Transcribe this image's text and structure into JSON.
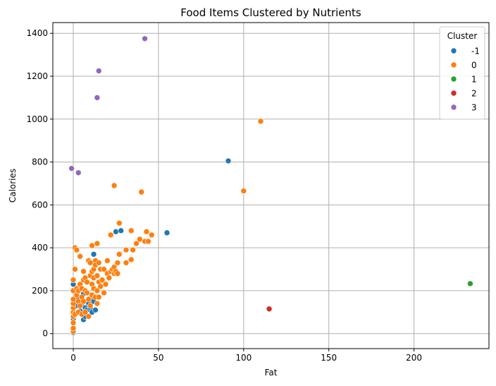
{
  "chart_data": {
    "type": "scatter",
    "title": "Food Items Clustered by Nutrients",
    "xlabel": "Fat",
    "ylabel": "Calories",
    "xlim": [
      -12,
      244
    ],
    "ylim": [
      -70,
      1450
    ],
    "xticks": [
      0,
      50,
      100,
      150,
      200
    ],
    "yticks": [
      0,
      200,
      400,
      600,
      800,
      1000,
      1200,
      1400
    ],
    "grid": true,
    "legend": {
      "title": "Cluster",
      "placement": "top-right"
    },
    "series": [
      {
        "name": "-1",
        "color": "#1f77b4",
        "points": [
          [
            0,
            5
          ],
          [
            0,
            70
          ],
          [
            0,
            230
          ],
          [
            2,
            130
          ],
          [
            3,
            160
          ],
          [
            4,
            105
          ],
          [
            5,
            140
          ],
          [
            6,
            65
          ],
          [
            6,
            185
          ],
          [
            7,
            120
          ],
          [
            7,
            80
          ],
          [
            8,
            110
          ],
          [
            9,
            140
          ],
          [
            10,
            120
          ],
          [
            11,
            100
          ],
          [
            11,
            160
          ],
          [
            12,
            370
          ],
          [
            12,
            150
          ],
          [
            13,
            110
          ],
          [
            25,
            475
          ],
          [
            28,
            480
          ],
          [
            55,
            470
          ],
          [
            91,
            805
          ]
        ]
      },
      {
        "name": "0",
        "color": "#ff7f0e",
        "points": [
          [
            0,
            10
          ],
          [
            0,
            25
          ],
          [
            0,
            50
          ],
          [
            0,
            80
          ],
          [
            0,
            100
          ],
          [
            0,
            120
          ],
          [
            0,
            140
          ],
          [
            0,
            160
          ],
          [
            0,
            200
          ],
          [
            0,
            250
          ],
          [
            1,
            300
          ],
          [
            1,
            400
          ],
          [
            1,
            90
          ],
          [
            2,
            390
          ],
          [
            2,
            210
          ],
          [
            2,
            180
          ],
          [
            3,
            100
          ],
          [
            3,
            150
          ],
          [
            3,
            200
          ],
          [
            4,
            360
          ],
          [
            4,
            230
          ],
          [
            4,
            130
          ],
          [
            5,
            90
          ],
          [
            5,
            170
          ],
          [
            5,
            210
          ],
          [
            6,
            290
          ],
          [
            6,
            250
          ],
          [
            6,
            150
          ],
          [
            7,
            100
          ],
          [
            7,
            200
          ],
          [
            7,
            260
          ],
          [
            8,
            240
          ],
          [
            8,
            190
          ],
          [
            9,
            340
          ],
          [
            9,
            80
          ],
          [
            9,
            160
          ],
          [
            10,
            270
          ],
          [
            10,
            330
          ],
          [
            10,
            130
          ],
          [
            11,
            410
          ],
          [
            11,
            290
          ],
          [
            11,
            230
          ],
          [
            11,
            180
          ],
          [
            12,
            300
          ],
          [
            12,
            210
          ],
          [
            12,
            260
          ],
          [
            13,
            340
          ],
          [
            13,
            320
          ],
          [
            13,
            170
          ],
          [
            14,
            420
          ],
          [
            14,
            270
          ],
          [
            14,
            200
          ],
          [
            14,
            140
          ],
          [
            15,
            330
          ],
          [
            15,
            240
          ],
          [
            15,
            170
          ],
          [
            16,
            300
          ],
          [
            16,
            220
          ],
          [
            17,
            250
          ],
          [
            18,
            190
          ],
          [
            18,
            300
          ],
          [
            19,
            230
          ],
          [
            20,
            340
          ],
          [
            20,
            280
          ],
          [
            21,
            260
          ],
          [
            22,
            460
          ],
          [
            22,
            290
          ],
          [
            23,
            300
          ],
          [
            24,
            310
          ],
          [
            24,
            280
          ],
          [
            24,
            690
          ],
          [
            25,
            290
          ],
          [
            26,
            280
          ],
          [
            26,
            330
          ],
          [
            27,
            515
          ],
          [
            27,
            370
          ],
          [
            31,
            390
          ],
          [
            31,
            330
          ],
          [
            34,
            480
          ],
          [
            34,
            345
          ],
          [
            35,
            390
          ],
          [
            37,
            420
          ],
          [
            39,
            440
          ],
          [
            40,
            660
          ],
          [
            42,
            430
          ],
          [
            43,
            475
          ],
          [
            44,
            430
          ],
          [
            46,
            460
          ],
          [
            100,
            665
          ],
          [
            110,
            990
          ]
        ]
      },
      {
        "name": "1",
        "color": "#2ca02c",
        "points": [
          [
            233,
            233
          ]
        ]
      },
      {
        "name": "2",
        "color": "#d62728",
        "points": [
          [
            115,
            115
          ]
        ]
      },
      {
        "name": "3",
        "color": "#9467bd",
        "points": [
          [
            -1,
            770
          ],
          [
            3,
            750
          ],
          [
            14,
            1100
          ],
          [
            15,
            1225
          ],
          [
            42,
            1375
          ]
        ]
      }
    ]
  }
}
